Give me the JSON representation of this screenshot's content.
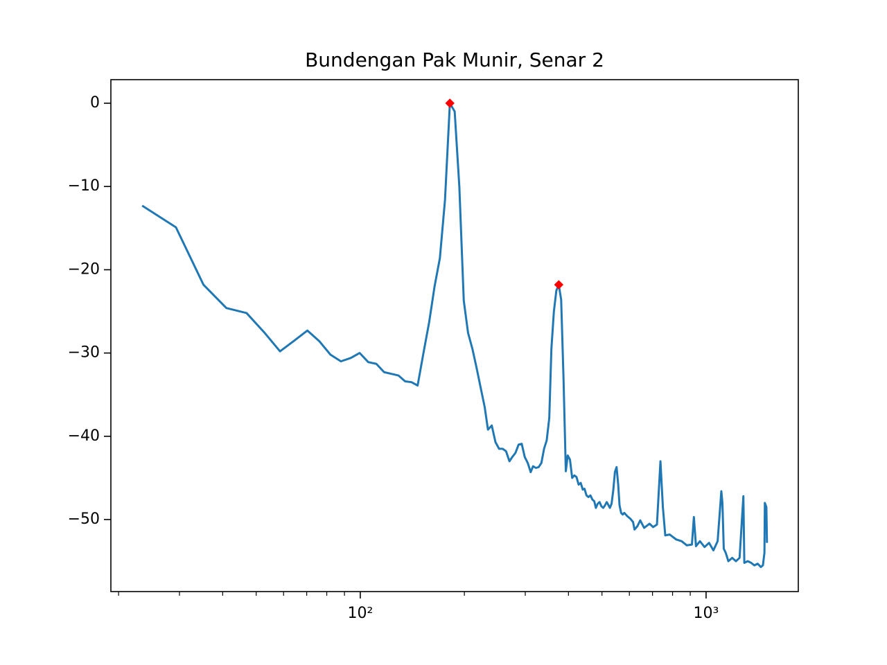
{
  "chart_data": {
    "type": "line",
    "title": "Bundengan Pak Munir, Senar 2",
    "xscale": "log",
    "xlim": [
      19.0,
      1848
    ],
    "ylim": [
      -58.65,
      2.83
    ],
    "xticks": [
      {
        "value": 100,
        "label": "10²"
      },
      {
        "value": 1000,
        "label": "10³"
      }
    ],
    "xminor_ticks": [
      20,
      30,
      40,
      50,
      60,
      70,
      80,
      90,
      200,
      300,
      400,
      500,
      600,
      700,
      800,
      900
    ],
    "yticks": [
      {
        "value": 0,
        "label": "0"
      },
      {
        "value": -10,
        "label": "−10"
      },
      {
        "value": -20,
        "label": "−20"
      },
      {
        "value": -30,
        "label": "−30"
      },
      {
        "value": -40,
        "label": "−40"
      },
      {
        "value": -50,
        "label": "−50"
      }
    ],
    "grid": false,
    "series": [
      {
        "color": "#1f77b4",
        "x": [
          23.4,
          29.3,
          35.2,
          41.0,
          46.9,
          52.7,
          58.6,
          64.5,
          70.3,
          76.2,
          82.0,
          87.9,
          93.8,
          99.6,
          105.5,
          111.3,
          117.2,
          123.0,
          129.0,
          134.8,
          140.6,
          146.5,
          152.3,
          158.2,
          164.0,
          169.9,
          175.8,
          181.6,
          187.5,
          193.4,
          199.2,
          205.0,
          211,
          217,
          223,
          229,
          234,
          240,
          246,
          252,
          258,
          264,
          270,
          275,
          281,
          287,
          293,
          299,
          305,
          311,
          316,
          322,
          328,
          334,
          340,
          346,
          352,
          357,
          363,
          369,
          375,
          381,
          387,
          393,
          398,
          404,
          410,
          416,
          422,
          428,
          434,
          440,
          445,
          451,
          457,
          463,
          469,
          475,
          480,
          486,
          492,
          498,
          504,
          510,
          516,
          521,
          527,
          533,
          539,
          545,
          551,
          557,
          562,
          568,
          574,
          580,
          592,
          604,
          615,
          621,
          633,
          645,
          662,
          686,
          703,
          721,
          738,
          750,
          762,
          785,
          820,
          850,
          880,
          910,
          922,
          935,
          960,
          990,
          1020,
          1050,
          1080,
          1107,
          1115,
          1125,
          1140,
          1160,
          1190,
          1220,
          1250,
          1282,
          1290,
          1320,
          1350,
          1380,
          1410,
          1440,
          1460,
          1475,
          1479,
          1494,
          1500
        ],
        "values": [
          -12.3,
          -14.9,
          -21.8,
          -24.6,
          -25.2,
          -27.5,
          -29.8,
          -28.5,
          -27.3,
          -28.6,
          -30.2,
          -31.0,
          -30.6,
          -30.0,
          -31.1,
          -31.3,
          -32.3,
          -32.5,
          -32.7,
          -33.4,
          -33.5,
          -33.9,
          -30.0,
          -26.3,
          -22.0,
          -18.6,
          -11.6,
          0,
          -1.0,
          -10.0,
          -23.7,
          -27.6,
          -29.5,
          -31.8,
          -34.2,
          -36.5,
          -39.2,
          -38.7,
          -40.7,
          -41.5,
          -41.5,
          -41.8,
          -43.0,
          -42.5,
          -42.0,
          -41.0,
          -40.9,
          -42.5,
          -43.2,
          -44.3,
          -43.6,
          -43.8,
          -43.7,
          -43.2,
          -41.5,
          -40.5,
          -37.8,
          -29.5,
          -25.0,
          -22.5,
          -21.8,
          -23.6,
          -33.0,
          -44.2,
          -42.3,
          -42.8,
          -45.0,
          -44.7,
          -44.9,
          -45.8,
          -45.6,
          -46.4,
          -46.3,
          -47.1,
          -47.3,
          -47.1,
          -47.6,
          -47.8,
          -48.6,
          -48.1,
          -47.9,
          -48.4,
          -48.6,
          -48.3,
          -47.9,
          -48.2,
          -48.6,
          -48.1,
          -46.5,
          -44.3,
          -43.7,
          -45.8,
          -48.3,
          -49.2,
          -49.4,
          -49.2,
          -49.6,
          -49.9,
          -50.3,
          -51.2,
          -50.8,
          -50.1,
          -51.0,
          -50.5,
          -50.9,
          -50.6,
          -43.0,
          -48.5,
          -51.9,
          -51.8,
          -52.4,
          -52.6,
          -53.1,
          -53.0,
          -49.7,
          -53.2,
          -52.6,
          -53.3,
          -52.8,
          -53.7,
          -52.6,
          -46.6,
          -48.0,
          -53.5,
          -54.0,
          -55.0,
          -54.6,
          -55.0,
          -54.6,
          -47.2,
          -55.2,
          -55.0,
          -55.2,
          -55.5,
          -55.3,
          -55.7,
          -55.5,
          -54.0,
          -48.0,
          -48.5,
          -52.8
        ]
      }
    ],
    "peaks": {
      "color": "#ff0000",
      "x": [
        181.6,
        375
      ],
      "values": [
        0,
        -21.8
      ]
    }
  }
}
